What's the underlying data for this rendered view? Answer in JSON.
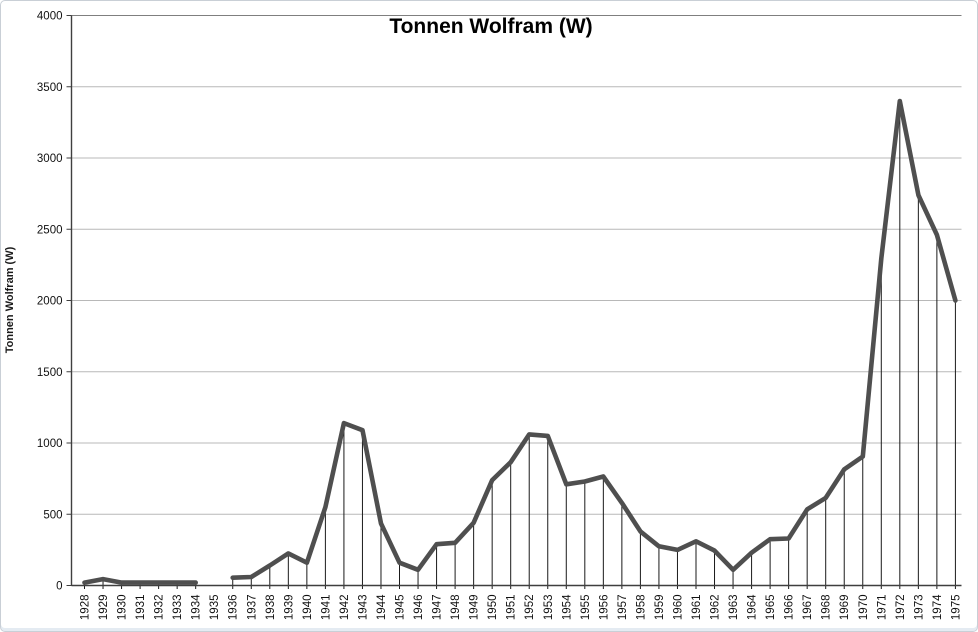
{
  "chart_data": {
    "type": "line",
    "title": "Tonnen Wolfram (W)",
    "ylabel": "Tonnen Wolfram (W)",
    "xlabel": "",
    "legend": "none",
    "grid": true,
    "drop_lines": true,
    "ylim": [
      0,
      4000
    ],
    "yticks": [
      0,
      500,
      1000,
      1500,
      2000,
      2500,
      3000,
      3500,
      4000
    ],
    "categories": [
      "1928",
      "1929",
      "1930",
      "1931",
      "1932",
      "1933",
      "1934",
      "1935",
      "1936",
      "1937",
      "1938",
      "1939",
      "1940",
      "1941",
      "1942",
      "1943",
      "1944",
      "1945",
      "1946",
      "1947",
      "1948",
      "1949",
      "1950",
      "1951",
      "1952",
      "1953",
      "1954",
      "1955",
      "1956",
      "1957",
      "1958",
      "1959",
      "1960",
      "1961",
      "1962",
      "1963",
      "1964",
      "1965",
      "1966",
      "1967",
      "1968",
      "1969",
      "1970",
      "1971",
      "1972",
      "1973",
      "1974",
      "1975"
    ],
    "values": [
      20,
      45,
      20,
      20,
      20,
      20,
      20,
      null,
      55,
      60,
      140,
      225,
      160,
      550,
      1140,
      1090,
      435,
      160,
      110,
      290,
      300,
      440,
      740,
      865,
      1060,
      1050,
      710,
      730,
      765,
      580,
      380,
      275,
      250,
      310,
      245,
      110,
      230,
      325,
      330,
      535,
      615,
      815,
      905,
      2295,
      3400,
      2740,
      2460,
      2000
    ],
    "missing_category": "1935",
    "colors": {
      "series_line": "#4f4f4f",
      "drop_line": "#1a1a1a",
      "gridline": "#b8b8b8",
      "top_gridline": "#7f7f7f",
      "axis_line": "#3f3f3f",
      "tick_label": "#111111",
      "title": "#000000"
    }
  }
}
